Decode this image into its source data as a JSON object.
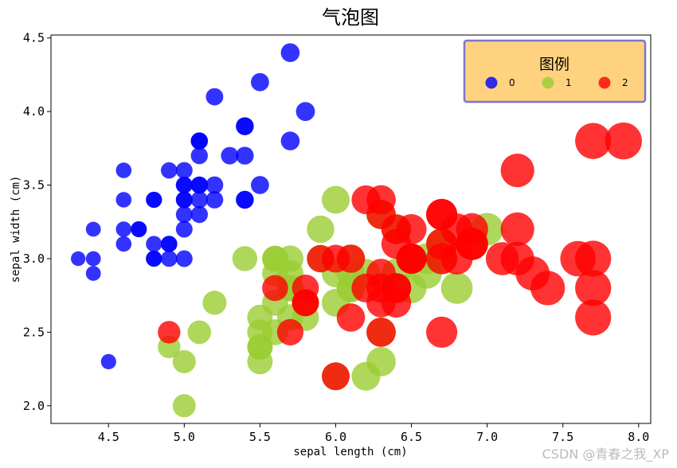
{
  "chart_data": {
    "type": "scatter",
    "title": "气泡图",
    "xlabel": "sepal length (cm)",
    "ylabel": "sepal width (cm)",
    "xlim": [
      4.12,
      8.08
    ],
    "ylim": [
      1.88,
      4.52
    ],
    "xticks": [
      "4.5",
      "5.0",
      "5.5",
      "6.0",
      "6.5",
      "7.0",
      "7.5",
      "8.0"
    ],
    "yticks": [
      "2.0",
      "2.5",
      "3.0",
      "3.5",
      "4.0",
      "4.5"
    ],
    "grid": false,
    "legend": {
      "title": "图例",
      "placement": "top-right",
      "background": "#ffd280",
      "border": "#7b76cf"
    },
    "series": [
      {
        "name": "0",
        "color": "#0000ff",
        "x": [
          5.1,
          4.9,
          4.7,
          4.6,
          5.0,
          5.4,
          4.6,
          5.0,
          4.4,
          4.9,
          5.4,
          4.8,
          4.8,
          4.3,
          5.8,
          5.7,
          5.4,
          5.1,
          5.7,
          5.1,
          5.4,
          5.1,
          4.6,
          5.1,
          4.8,
          5.0,
          5.0,
          5.2,
          5.2,
          4.7,
          4.8,
          5.4,
          5.2,
          5.5,
          4.9,
          5.0,
          5.5,
          4.9,
          4.4,
          5.1,
          5.0,
          4.5,
          4.4,
          5.0,
          5.1,
          4.8,
          5.1,
          4.6,
          5.3,
          5.0
        ],
        "y": [
          3.5,
          3.0,
          3.2,
          3.1,
          3.6,
          3.9,
          3.4,
          3.4,
          2.9,
          3.1,
          3.7,
          3.4,
          3.0,
          3.0,
          4.0,
          4.4,
          3.9,
          3.5,
          3.8,
          3.8,
          3.4,
          3.7,
          3.6,
          3.3,
          3.4,
          3.0,
          3.4,
          3.5,
          3.4,
          3.2,
          3.1,
          3.4,
          4.1,
          4.2,
          3.1,
          3.2,
          3.5,
          3.6,
          3.0,
          3.4,
          3.5,
          2.3,
          3.2,
          3.5,
          3.8,
          3.0,
          3.8,
          3.2,
          3.7,
          3.3
        ]
      },
      {
        "name": "1",
        "color": "#9acd32",
        "x": [
          7.0,
          6.4,
          6.9,
          5.5,
          6.5,
          5.7,
          6.3,
          4.9,
          6.6,
          5.2,
          5.0,
          5.9,
          6.0,
          6.1,
          5.6,
          6.7,
          5.6,
          5.8,
          6.2,
          5.6,
          5.9,
          6.1,
          6.3,
          6.1,
          6.4,
          6.6,
          6.8,
          6.7,
          6.0,
          5.7,
          5.5,
          5.5,
          5.8,
          6.0,
          5.4,
          6.0,
          6.7,
          6.3,
          5.6,
          5.5,
          5.5,
          6.1,
          5.8,
          5.0,
          5.6,
          5.7,
          5.7,
          6.2,
          5.1,
          5.7
        ],
        "y": [
          3.2,
          3.2,
          3.1,
          2.3,
          2.8,
          2.8,
          3.3,
          2.4,
          2.9,
          2.7,
          2.0,
          3.0,
          2.2,
          2.9,
          2.9,
          3.1,
          3.0,
          2.7,
          2.2,
          2.5,
          3.2,
          2.8,
          2.5,
          2.8,
          2.9,
          3.0,
          2.8,
          3.0,
          2.9,
          2.6,
          2.4,
          2.4,
          2.7,
          2.7,
          3.0,
          3.4,
          3.1,
          2.3,
          3.0,
          2.5,
          2.6,
          3.0,
          2.6,
          2.3,
          2.7,
          3.0,
          2.9,
          2.9,
          2.5,
          2.8
        ]
      },
      {
        "name": "2",
        "color": "#ff0000",
        "x": [
          6.3,
          5.8,
          7.1,
          6.3,
          6.5,
          7.6,
          4.9,
          7.3,
          6.7,
          7.2,
          6.5,
          6.4,
          6.8,
          5.7,
          5.8,
          6.4,
          6.5,
          7.7,
          7.7,
          6.0,
          6.9,
          5.6,
          7.7,
          6.3,
          6.7,
          7.2,
          6.2,
          6.1,
          6.4,
          7.2,
          7.4,
          7.9,
          6.4,
          6.3,
          6.1,
          7.7,
          6.3,
          6.4,
          6.0,
          6.9,
          6.7,
          6.9,
          5.8,
          6.8,
          6.7,
          6.7,
          6.3,
          6.5,
          6.2,
          5.9
        ],
        "y": [
          3.3,
          2.7,
          3.0,
          2.9,
          3.0,
          3.0,
          2.5,
          2.9,
          2.5,
          3.6,
          3.2,
          2.7,
          3.0,
          2.5,
          2.8,
          3.2,
          3.0,
          3.8,
          2.6,
          2.2,
          3.2,
          2.8,
          2.8,
          2.7,
          3.3,
          3.2,
          2.8,
          3.0,
          2.8,
          3.0,
          2.8,
          3.8,
          2.8,
          2.8,
          2.6,
          3.0,
          3.4,
          3.1,
          3.0,
          3.1,
          3.1,
          3.1,
          2.7,
          3.2,
          3.3,
          3.0,
          2.5,
          3.0,
          3.4,
          3.0
        ]
      }
    ],
    "bubble_size_by": "sepal length"
  },
  "watermark": "CSDN @青春之我_XP"
}
